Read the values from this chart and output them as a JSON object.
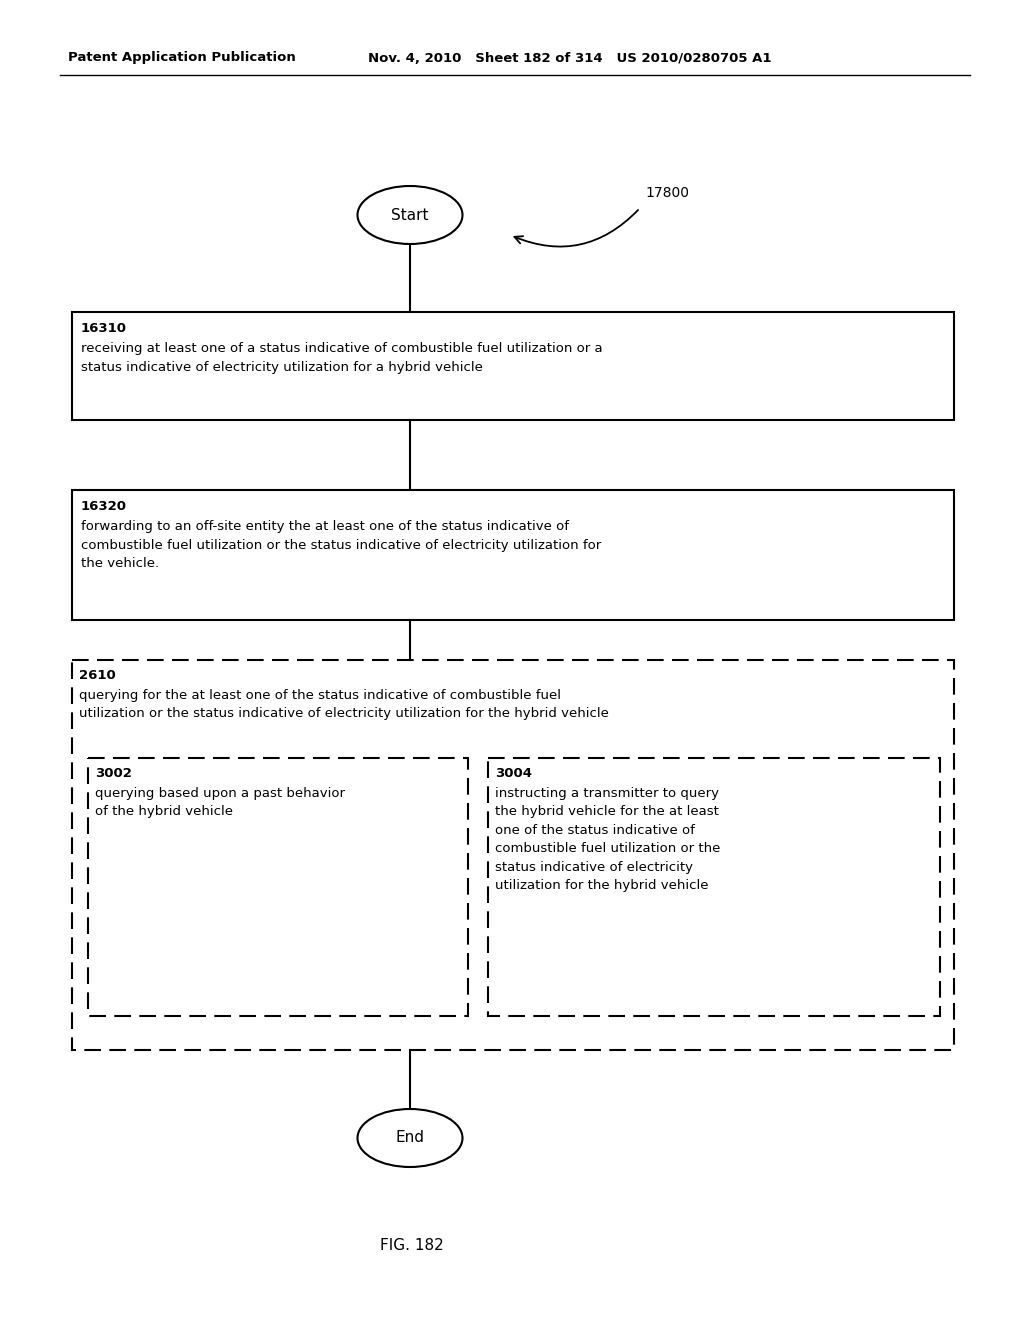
{
  "header_left": "Patent Application Publication",
  "header_mid": "Nov. 4, 2010   Sheet 182 of 314   US 2010/0280705 A1",
  "fig_label": "FIG. 182",
  "flow_label": "17800",
  "start_label": "Start",
  "end_label": "End",
  "box1_id": "16310",
  "box1_text": "receiving at least one of a status indicative of combustible fuel utilization or a\nstatus indicative of electricity utilization for a hybrid vehicle",
  "box2_id": "16320",
  "box2_text": "forwarding to an off-site entity the at least one of the status indicative of\ncombustible fuel utilization or the status indicative of electricity utilization for\nthe vehicle.",
  "dashed_outer_id": "2610",
  "dashed_outer_text": "querying for the at least one of the status indicative of combustible fuel\nutilization or the status indicative of electricity utilization for the hybrid vehicle",
  "dashed_inner1_id": "3002",
  "dashed_inner1_text": "querying based upon a past behavior\nof the hybrid vehicle",
  "dashed_inner2_id": "3004",
  "dashed_inner2_text": "instructing a transmitter to query\nthe hybrid vehicle for the at least\none of the status indicative of\ncombustible fuel utilization or the\nstatus indicative of electricity\nutilization for the hybrid vehicle",
  "bg_color": "#ffffff",
  "text_color": "#000000"
}
